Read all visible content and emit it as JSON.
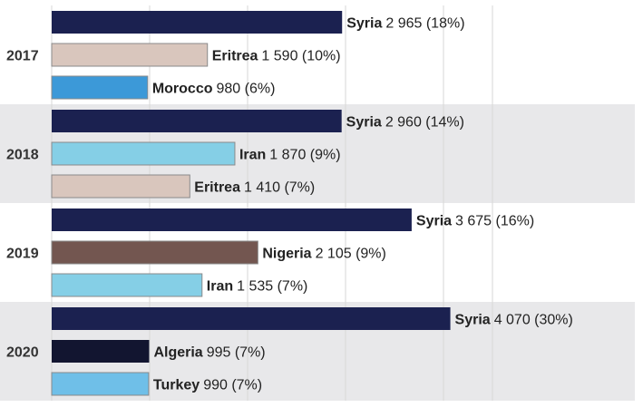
{
  "chart_data": {
    "type": "bar",
    "orientation": "horizontal",
    "grid": true,
    "xlim": [
      0,
      4500
    ],
    "groups": [
      {
        "year": "2017",
        "bars": [
          {
            "country": "Syria",
            "value": 2965,
            "value_text": "2 965",
            "share": "(18%)",
            "color": "#1b2150"
          },
          {
            "country": "Eritrea",
            "value": 1590,
            "value_text": "1 590",
            "share": "(10%)",
            "color": "#d9c6bd"
          },
          {
            "country": "Morocco",
            "value": 980,
            "value_text": " 980",
            "share": "(6%)",
            "color": "#3c99d8"
          }
        ]
      },
      {
        "year": "2018",
        "bars": [
          {
            "country": "Syria",
            "value": 2960,
            "value_text": "2 960",
            "share": "(14%)",
            "color": "#1b2150"
          },
          {
            "country": "Iran",
            "value": 1870,
            "value_text": "1 870",
            "share": "(9%)",
            "color": "#85cfe6"
          },
          {
            "country": "Eritrea",
            "value": 1410,
            "value_text": "1 410",
            "share": "(7%)",
            "color": "#d9c6bd"
          }
        ]
      },
      {
        "year": "2019",
        "bars": [
          {
            "country": "Syria",
            "value": 3675,
            "value_text": "3 675",
            "share": "(16%)",
            "color": "#1b2150"
          },
          {
            "country": "Nigeria",
            "value": 2105,
            "value_text": "2 105",
            "share": "(9%)",
            "color": "#735650"
          },
          {
            "country": "Iran",
            "value": 1535,
            "value_text": "1 535",
            "share": "(7%)",
            "color": "#85cfe6"
          }
        ]
      },
      {
        "year": "2020",
        "bars": [
          {
            "country": "Syria",
            "value": 4070,
            "value_text": "4 070",
            "share": "(30%)",
            "color": "#1b2150"
          },
          {
            "country": "Algeria",
            "value": 995,
            "value_text": " 995",
            "share": "(7%)",
            "color": "#121530"
          },
          {
            "country": "Turkey",
            "value": 990,
            "value_text": " 990",
            "share": "(7%)",
            "color": "#6fbfe8"
          }
        ]
      }
    ],
    "band_colors": [
      "#ffffff",
      "#e8e8ea"
    ],
    "grid_color": "#d7d7d7",
    "bar_outline_color": "#8a8a8a"
  }
}
